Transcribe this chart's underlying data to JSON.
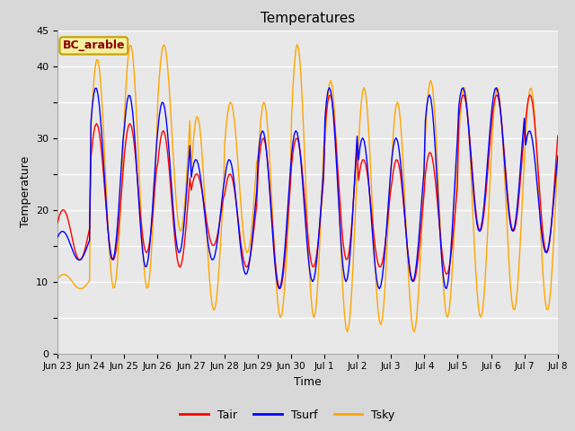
{
  "title": "Temperatures",
  "xlabel": "Time",
  "ylabel": "Temperature",
  "label_text": "BC_arable",
  "ylim": [
    0,
    45
  ],
  "legend_labels": [
    "Tair",
    "Tsurf",
    "Tsky"
  ],
  "line_colors": [
    "red",
    "blue",
    "orange"
  ],
  "fig_bg_color": "#d8d8d8",
  "plot_bg_color": "#e8e8e8",
  "grid_color": "#ffffff",
  "x_tick_labels": [
    "Jun 23",
    "Jun 24",
    "Jun 25",
    "Jun 26",
    "Jun 27",
    "Jun 28",
    "Jun 29",
    "Jun 30",
    "Jul 1",
    "Jul 2",
    "Jul 3",
    "Jul 4",
    "Jul 5",
    "Jul 6",
    "Jul 7",
    "Jul 8"
  ],
  "y_tick_vals": [
    0,
    5,
    10,
    15,
    20,
    25,
    30,
    35,
    40,
    45
  ],
  "y_tick_labels": [
    "0",
    "",
    "10",
    "",
    "20",
    "",
    "30",
    "",
    "40",
    "45"
  ],
  "day_peak_air": [
    20,
    32,
    32,
    31,
    25,
    25,
    30,
    30,
    36,
    27,
    27,
    28,
    36,
    36,
    36
  ],
  "day_trough_air": [
    13,
    13,
    14,
    12,
    15,
    12,
    9,
    12,
    13,
    12,
    10,
    11,
    17,
    17,
    14
  ],
  "day_peak_surf": [
    17,
    37,
    36,
    35,
    27,
    27,
    31,
    31,
    37,
    30,
    30,
    36,
    37,
    37,
    31
  ],
  "day_trough_surf": [
    13,
    13,
    12,
    14,
    13,
    11,
    9,
    10,
    10,
    9,
    10,
    9,
    17,
    17,
    14
  ],
  "day_peak_sky": [
    11,
    41,
    43,
    43,
    33,
    35,
    35,
    43,
    38,
    37,
    35,
    38,
    37,
    37,
    37
  ],
  "day_trough_sky": [
    9,
    9,
    9,
    17,
    6,
    14,
    5,
    5,
    3,
    4,
    3,
    5,
    5,
    6,
    6
  ],
  "pts_per_day": 24,
  "n_days": 15,
  "phase_peak_air": 0.58,
  "phase_peak_surf": 0.6,
  "phase_peak_sky": 0.56
}
